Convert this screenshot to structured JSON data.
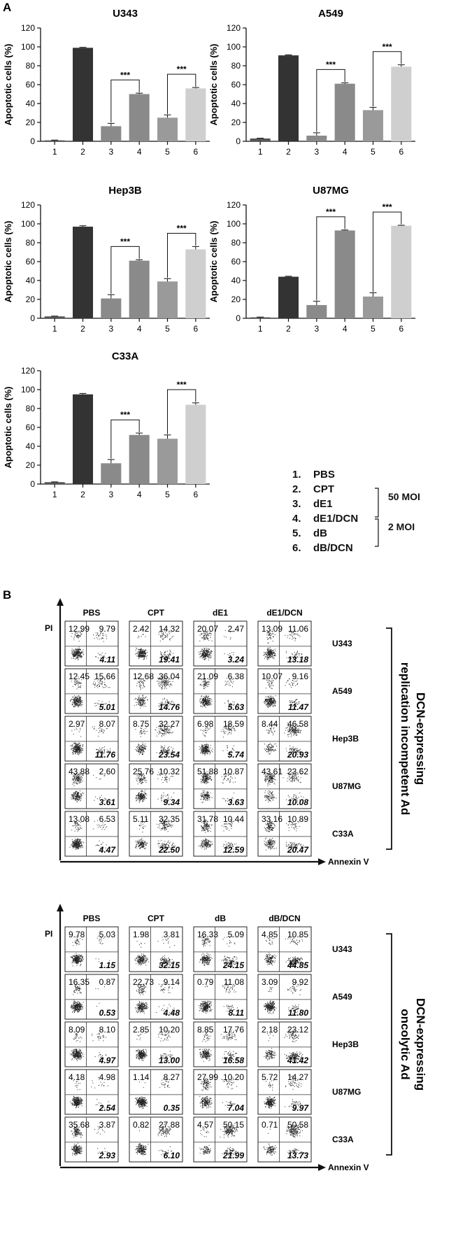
{
  "panel_a_label": "A",
  "panel_b_label": "B",
  "chart_data": [
    {
      "type": "bar",
      "title": "U343",
      "ylabel": "Apoptotic cells (%)",
      "categories": [
        "1",
        "2",
        "3",
        "4",
        "5",
        "6"
      ],
      "values": [
        1,
        99,
        16,
        50,
        25,
        56
      ],
      "errors": [
        0.3,
        0.5,
        3,
        1,
        3,
        1
      ],
      "ylim": [
        0,
        120
      ],
      "yticks": [
        0,
        20,
        40,
        60,
        80,
        100,
        120
      ],
      "significance": [
        {
          "from": "3",
          "to": "4",
          "label": "***"
        },
        {
          "from": "5",
          "to": "6",
          "label": "***"
        }
      ]
    },
    {
      "type": "bar",
      "title": "A549",
      "ylabel": "Apoptotic cells (%)",
      "categories": [
        "1",
        "2",
        "3",
        "4",
        "5",
        "6"
      ],
      "values": [
        3,
        91,
        6,
        61,
        33,
        79
      ],
      "errors": [
        0.3,
        0.5,
        3,
        1,
        3,
        2
      ],
      "ylim": [
        0,
        120
      ],
      "yticks": [
        0,
        20,
        40,
        60,
        80,
        100,
        120
      ],
      "significance": [
        {
          "from": "3",
          "to": "4",
          "label": "***"
        },
        {
          "from": "5",
          "to": "6",
          "label": "***"
        }
      ]
    },
    {
      "type": "bar",
      "title": "Hep3B",
      "ylabel": "Apoptotic cells (%)",
      "categories": [
        "1",
        "2",
        "3",
        "4",
        "5",
        "6"
      ],
      "values": [
        2,
        97,
        21,
        61,
        39,
        73
      ],
      "errors": [
        0.3,
        1,
        4,
        1,
        3,
        3
      ],
      "ylim": [
        0,
        120
      ],
      "yticks": [
        0,
        20,
        40,
        60,
        80,
        100,
        120
      ],
      "significance": [
        {
          "from": "3",
          "to": "4",
          "label": "***"
        },
        {
          "from": "5",
          "to": "6",
          "label": "***"
        }
      ]
    },
    {
      "type": "bar",
      "title": "U87MG",
      "ylabel": "Apoptotic cells (%)",
      "categories": [
        "1",
        "2",
        "3",
        "4",
        "5",
        "6"
      ],
      "values": [
        1,
        44,
        14,
        93,
        23,
        98
      ],
      "errors": [
        0.3,
        0.5,
        4,
        0.5,
        4,
        0.5
      ],
      "ylim": [
        0,
        120
      ],
      "yticks": [
        0,
        20,
        40,
        60,
        80,
        100,
        120
      ],
      "significance": [
        {
          "from": "3",
          "to": "4",
          "label": "***"
        },
        {
          "from": "5",
          "to": "6",
          "label": "***"
        }
      ]
    },
    {
      "type": "bar",
      "title": "C33A",
      "ylabel": "Apoptotic cells (%)",
      "categories": [
        "1",
        "2",
        "3",
        "4",
        "5",
        "6"
      ],
      "values": [
        2,
        95,
        22,
        52,
        48,
        84
      ],
      "errors": [
        0.3,
        1,
        4,
        2,
        4,
        2
      ],
      "ylim": [
        0,
        120
      ],
      "yticks": [
        0,
        20,
        40,
        60,
        80,
        100,
        120
      ],
      "significance": [
        {
          "from": "3",
          "to": "4",
          "label": "***"
        },
        {
          "from": "5",
          "to": "6",
          "label": "***"
        }
      ]
    },
    {
      "type": "table",
      "title": "DCN-expressing replication incompetent Ad",
      "xlabel": "Annexin V",
      "ylabel": "PI",
      "columns": [
        "PBS",
        "CPT",
        "dE1",
        "dE1/DCN"
      ],
      "rows": [
        "U343",
        "A549",
        "Hep3B",
        "U87MG",
        "C33A"
      ],
      "cells": [
        [
          [
            "12.99",
            "9.79",
            "4.11"
          ],
          [
            "2.42",
            "14.32",
            "19.41"
          ],
          [
            "20.07",
            "2.47",
            "3.24"
          ],
          [
            "13.09",
            "11.06",
            "13.18"
          ]
        ],
        [
          [
            "12.45",
            "15.66",
            "5.01"
          ],
          [
            "12.68",
            "36.04",
            "14.76"
          ],
          [
            "21.09",
            "6.38",
            "5.63"
          ],
          [
            "10.07",
            "9.16",
            "11.47"
          ]
        ],
        [
          [
            "2.97",
            "8.07",
            "11.76"
          ],
          [
            "8.75",
            "32.27",
            "23.54"
          ],
          [
            "6.98",
            "18.59",
            "5.74"
          ],
          [
            "8.44",
            "46.58",
            "20.93"
          ]
        ],
        [
          [
            "43.88",
            "2.60",
            "3.61"
          ],
          [
            "25.76",
            "10.32",
            "9.34"
          ],
          [
            "51.88",
            "10.87",
            "3.63"
          ],
          [
            "43.61",
            "23.62",
            "10.08"
          ]
        ],
        [
          [
            "13.08",
            "6.53",
            "4.47"
          ],
          [
            "5.11",
            "32.35",
            "22.50"
          ],
          [
            "31.78",
            "10.44",
            "12.59"
          ],
          [
            "33.16",
            "10.89",
            "20.47"
          ]
        ]
      ]
    },
    {
      "type": "table",
      "title": "DCN-expressing oncolytic Ad",
      "xlabel": "Annexin V",
      "ylabel": "PI",
      "columns": [
        "PBS",
        "CPT",
        "dB",
        "dB/DCN"
      ],
      "rows": [
        "U343",
        "A549",
        "Hep3B",
        "U87MG",
        "C33A"
      ],
      "cells": [
        [
          [
            "9.78",
            "5.03",
            "1.15"
          ],
          [
            "1.98",
            "3.81",
            "32.15"
          ],
          [
            "16.33",
            "5.09",
            "24.15"
          ],
          [
            "4.85",
            "10.85",
            "44.85"
          ]
        ],
        [
          [
            "16.35",
            "0.87",
            "0.53"
          ],
          [
            "22.73",
            "9.14",
            "4.48"
          ],
          [
            "0.79",
            "11.08",
            "8.11"
          ],
          [
            "3.09",
            "9.92",
            "11.80"
          ]
        ],
        [
          [
            "8.09",
            "8.10",
            "4.97"
          ],
          [
            "2.85",
            "10.20",
            "13.00"
          ],
          [
            "8.85",
            "17.76",
            "16.58"
          ],
          [
            "2.18",
            "23.12",
            "41.42"
          ]
        ],
        [
          [
            "4.18",
            "4.98",
            "2.54"
          ],
          [
            "1.14",
            "8.27",
            "0.35"
          ],
          [
            "27.99",
            "10.20",
            "7.04"
          ],
          [
            "5.72",
            "14.27",
            "9.97"
          ]
        ],
        [
          [
            "35.68",
            "3.87",
            "2.93"
          ],
          [
            "0.82",
            "27.88",
            "6.10"
          ],
          [
            "4.57",
            "50.15",
            "21.99"
          ],
          [
            "0.71",
            "50.58",
            "13.73"
          ]
        ]
      ]
    }
  ],
  "legend": {
    "items": [
      {
        "num": "1.",
        "label": "PBS"
      },
      {
        "num": "2.",
        "label": "CPT"
      },
      {
        "num": "3.",
        "label": "dE1"
      },
      {
        "num": "4.",
        "label": "dE1/DCN"
      },
      {
        "num": "5.",
        "label": "dB"
      },
      {
        "num": "6.",
        "label": "dB/DCN"
      }
    ],
    "moi_high": "50 MOI",
    "moi_low": "2 MOI"
  },
  "colors": {
    "bars": [
      "#555555",
      "#333333",
      "#8a8a8a",
      "#8a8a8a",
      "#9a9a9a",
      "#cfcfcf"
    ],
    "axis": "#111111",
    "dots": "#222222"
  }
}
